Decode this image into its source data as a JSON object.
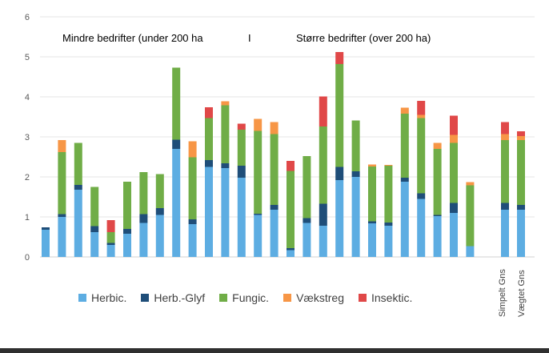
{
  "chart_data": {
    "type": "bar",
    "stacked": true,
    "ylim": [
      0,
      6
    ],
    "yticks": [
      0,
      1,
      2,
      3,
      4,
      5,
      6
    ],
    "grid": true,
    "legend_position": "bottom",
    "annotations": {
      "left": "Mindre bedrifter (under 200 ha",
      "divider": "I",
      "right": "Større bedrifter (over 200 ha)"
    },
    "summary_labels": [
      "Simpelt Gns",
      "Vægtet Gns"
    ],
    "series": [
      {
        "name": "Herbic.",
        "color": "#5dade2",
        "values": [
          0.68,
          1.0,
          1.68,
          0.62,
          0.3,
          0.58,
          0.85,
          1.05,
          2.7,
          0.82,
          2.25,
          2.22,
          1.98,
          1.05,
          1.18,
          0.17,
          0.85,
          0.78,
          1.92,
          2.0,
          0.84,
          0.78,
          1.88,
          1.45,
          1.02,
          1.1,
          0.27,
          1.18,
          1.18
        ]
      },
      {
        "name": "Herb.-Glyf",
        "color": "#1f4e79",
        "values": [
          0.06,
          0.07,
          0.12,
          0.15,
          0.05,
          0.12,
          0.22,
          0.17,
          0.23,
          0.12,
          0.17,
          0.12,
          0.3,
          0.03,
          0.12,
          0.05,
          0.12,
          0.55,
          0.33,
          0.14,
          0.05,
          0.08,
          0.1,
          0.14,
          0.03,
          0.25,
          0.0,
          0.17,
          0.12
        ]
      },
      {
        "name": "Fungic.",
        "color": "#70ad47",
        "values": [
          0.0,
          1.55,
          1.05,
          0.98,
          0.27,
          1.18,
          1.05,
          0.85,
          1.8,
          1.55,
          1.05,
          1.45,
          0.9,
          2.07,
          1.77,
          1.93,
          1.55,
          1.93,
          2.57,
          1.27,
          1.37,
          1.42,
          1.6,
          1.88,
          1.65,
          1.5,
          1.52,
          1.57,
          1.62
        ]
      },
      {
        "name": "Vækstreg",
        "color": "#f79646",
        "values": [
          0.0,
          0.3,
          0.0,
          0.0,
          0.0,
          0.0,
          0.0,
          0.0,
          0.0,
          0.4,
          0.0,
          0.1,
          0.0,
          0.3,
          0.3,
          0.0,
          0.0,
          0.0,
          0.0,
          0.0,
          0.05,
          0.02,
          0.15,
          0.08,
          0.15,
          0.2,
          0.08,
          0.15,
          0.1
        ]
      },
      {
        "name": "Insektic.",
        "color": "#e04848",
        "values": [
          0.0,
          0.0,
          0.0,
          0.0,
          0.3,
          0.0,
          0.0,
          0.0,
          0.0,
          0.0,
          0.27,
          0.0,
          0.15,
          0.0,
          0.0,
          0.25,
          0.0,
          0.75,
          0.3,
          0.0,
          0.0,
          0.0,
          0.0,
          0.35,
          0.0,
          0.48,
          0.0,
          0.3,
          0.12
        ]
      }
    ]
  }
}
